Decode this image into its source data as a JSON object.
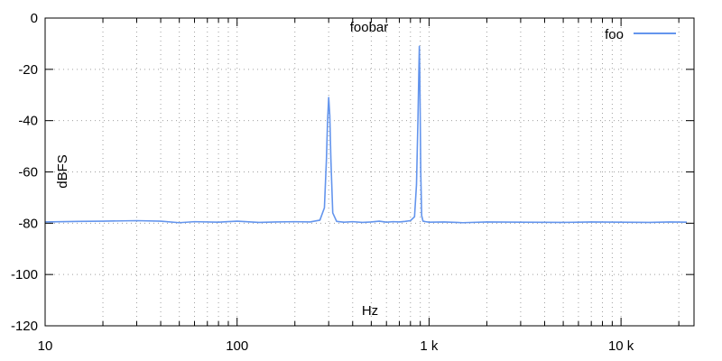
{
  "chart_data": {
    "type": "line",
    "title": "foobar",
    "xlabel": "Hz",
    "ylabel": "dBFS",
    "x_scale": "log",
    "xlim": [
      10,
      24000
    ],
    "ylim": [
      -120,
      0
    ],
    "grid": true,
    "legend_position": "top-right",
    "x_ticks": [
      {
        "value": 10,
        "label": "10"
      },
      {
        "value": 100,
        "label": "100"
      },
      {
        "value": 1000,
        "label": "1 k"
      },
      {
        "value": 10000,
        "label": "10 k"
      }
    ],
    "y_ticks": [
      {
        "value": 0,
        "label": "0"
      },
      {
        "value": -20,
        "label": "-20"
      },
      {
        "value": -40,
        "label": "-40"
      },
      {
        "value": -60,
        "label": "-60"
      },
      {
        "value": -80,
        "label": "-80"
      },
      {
        "value": -100,
        "label": "-100"
      },
      {
        "value": -120,
        "label": "-120"
      }
    ],
    "series": [
      {
        "name": "foo",
        "color": "#6495ed",
        "x": [
          10,
          15,
          20,
          30,
          40,
          50,
          60,
          80,
          100,
          130,
          160,
          200,
          240,
          270,
          285,
          292,
          296,
          300,
          304,
          308,
          315,
          330,
          360,
          400,
          450,
          500,
          550,
          600,
          650,
          700,
          750,
          800,
          840,
          860,
          875,
          885,
          890,
          895,
          905,
          915,
          930,
          960,
          1000,
          1200,
          1500,
          2000,
          3000,
          5000,
          7000,
          10000,
          14000,
          18000,
          22000
        ],
        "y": [
          -79.5,
          -79.3,
          -79.2,
          -79.0,
          -79.2,
          -79.8,
          -79.4,
          -79.6,
          -79.2,
          -79.7,
          -79.5,
          -79.4,
          -79.5,
          -78.8,
          -74,
          -55,
          -40,
          -31,
          -38,
          -55,
          -76,
          -79.3,
          -79.6,
          -79.4,
          -79.7,
          -79.5,
          -79.2,
          -79.6,
          -79.4,
          -79.5,
          -79.3,
          -79.0,
          -77.5,
          -65,
          -40,
          -20,
          -11,
          -22,
          -60,
          -77,
          -79.2,
          -79.4,
          -79.6,
          -79.5,
          -79.8,
          -79.5,
          -79.6,
          -79.7,
          -79.5,
          -79.6,
          -79.7,
          -79.5,
          -79.6
        ]
      }
    ]
  }
}
